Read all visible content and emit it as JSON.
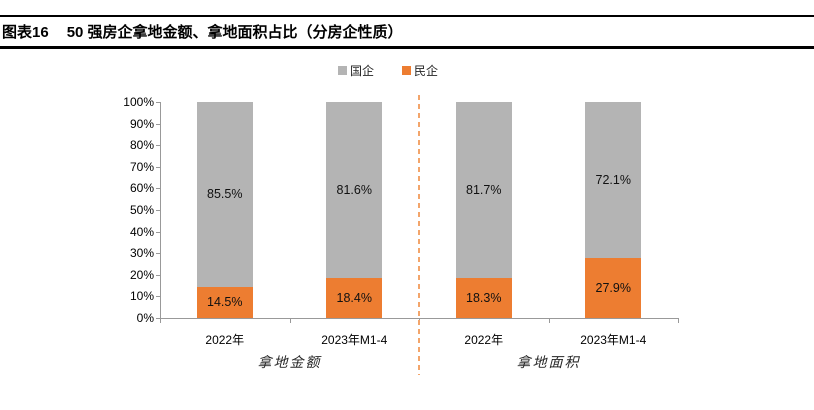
{
  "header": {
    "figure_label": "图表16",
    "title": "50 强房企拿地金额、拿地面积占比（分房企性质）"
  },
  "chart_data": {
    "type": "bar",
    "stacked": true,
    "percent_stacked": true,
    "title": "50 强房企拿地金额、拿地面积占比（分房企性质）",
    "categories": [
      "2022年",
      "2023年M1-4",
      "2022年",
      "2023年M1-4"
    ],
    "group_labels": [
      "拿地金额",
      "拿地面积"
    ],
    "series": [
      {
        "name": "国企",
        "color": "#B4B4B4",
        "values": [
          85.5,
          81.6,
          81.7,
          72.1
        ],
        "labels": [
          "85.5%",
          "81.6%",
          "81.7%",
          "72.1%"
        ]
      },
      {
        "name": "民企",
        "color": "#ED7D31",
        "values": [
          14.5,
          18.4,
          18.3,
          27.9
        ],
        "labels": [
          "14.5%",
          "18.4%",
          "18.3%",
          "27.9%"
        ]
      }
    ],
    "y_ticks": [
      "0%",
      "10%",
      "20%",
      "30%",
      "40%",
      "50%",
      "60%",
      "70%",
      "80%",
      "90%",
      "100%"
    ],
    "ylim": [
      0,
      100
    ],
    "xlabel": "",
    "ylabel": "",
    "legend_position": "top",
    "grid": false,
    "axis_color": "#999999",
    "divider_color": "#F3A56B"
  }
}
